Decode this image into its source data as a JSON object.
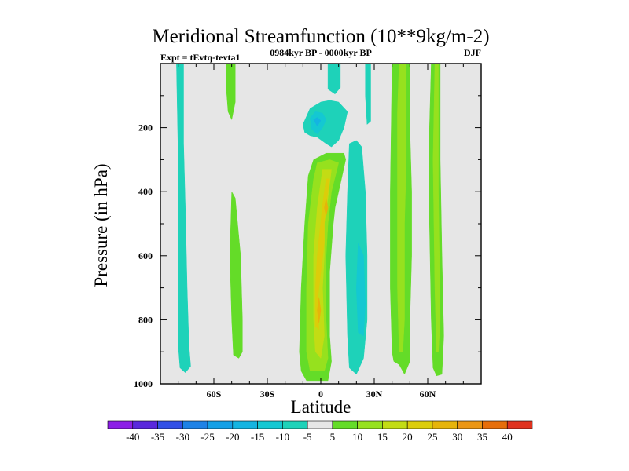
{
  "chart_data": {
    "type": "heatmap",
    "title": "Meridional Streamfunction (10**9kg/m-2)",
    "left_annotation": "Expt = tEvtq-tevta1",
    "subtitle": "0984kyr BP - 0000kyr BP",
    "season": "DJF",
    "xlabel": "Latitude",
    "ylabel": "Pressure (in hPa)",
    "xlim": [
      -90,
      90
    ],
    "ylim": [
      1000,
      0
    ],
    "x_ticks": [
      {
        "value": -60,
        "label": "60S"
      },
      {
        "value": -30,
        "label": "30S"
      },
      {
        "value": 0,
        "label": "0"
      },
      {
        "value": 30,
        "label": "30N"
      },
      {
        "value": 60,
        "label": "60N"
      }
    ],
    "y_ticks": [
      {
        "value": 200,
        "label": "200"
      },
      {
        "value": 400,
        "label": "400"
      },
      {
        "value": 600,
        "label": "600"
      },
      {
        "value": 800,
        "label": "800"
      },
      {
        "value": 1000,
        "label": "1000"
      }
    ],
    "background_color": "#e6e6e6",
    "colorbar": {
      "levels": [
        -40,
        -35,
        -30,
        -25,
        -20,
        -15,
        -10,
        -5,
        5,
        10,
        15,
        20,
        25,
        30,
        35,
        40
      ],
      "labels": [
        "-40",
        "-35",
        "-30",
        "-25",
        "-20",
        "-15",
        "-10",
        "-5",
        "5",
        "10",
        "15",
        "20",
        "25",
        "30",
        "35",
        "40"
      ],
      "colors": [
        "#8c1ee6",
        "#5a28dc",
        "#3250e6",
        "#1e82e6",
        "#14a0e6",
        "#14b4e1",
        "#14c8d2",
        "#1ed2b9",
        "#e6e6e6",
        "#64dc28",
        "#96e11e",
        "#c3dc14",
        "#dccd0a",
        "#e6b40a",
        "#eb9614",
        "#e66e0a",
        "#e0321e"
      ]
    },
    "contour_regions": [
      {
        "name": "sh-high-lat-cell",
        "level": -5,
        "points": [
          [
            -81,
            0
          ],
          [
            -77,
            0
          ],
          [
            -77,
            250
          ],
          [
            -76,
            450
          ],
          [
            -75,
            700
          ],
          [
            -74,
            880
          ],
          [
            -73,
            945
          ],
          [
            -76,
            965
          ],
          [
            -79,
            950
          ],
          [
            -80,
            880
          ],
          [
            -80,
            600
          ],
          [
            -80,
            300
          ]
        ]
      },
      {
        "name": "sh-upper-cell",
        "level": 5,
        "points": [
          [
            -53,
            0
          ],
          [
            -48,
            0
          ],
          [
            -48,
            120
          ],
          [
            -50,
            175
          ],
          [
            -52,
            150
          ],
          [
            -53,
            80
          ]
        ]
      },
      {
        "name": "sh-mid-lat-cell",
        "level": 5,
        "points": [
          [
            -50,
            400
          ],
          [
            -48,
            420
          ],
          [
            -45,
            600
          ],
          [
            -44,
            800
          ],
          [
            -44,
            900
          ],
          [
            -46,
            920
          ],
          [
            -49,
            910
          ],
          [
            -50,
            800
          ],
          [
            -51,
            600
          ]
        ]
      },
      {
        "name": "tropical-upper-cell-outer",
        "level": -5,
        "points": [
          [
            -10,
            190
          ],
          [
            -6,
            140
          ],
          [
            0,
            120
          ],
          [
            5,
            115
          ],
          [
            10,
            120
          ],
          [
            15,
            150
          ],
          [
            13,
            200
          ],
          [
            10,
            240
          ],
          [
            6,
            260
          ],
          [
            3,
            250
          ],
          [
            -2,
            230
          ],
          [
            -6,
            225
          ],
          [
            -9,
            215
          ]
        ]
      },
      {
        "name": "tropical-upper-cell-inner",
        "level": -10,
        "points": [
          [
            -6,
            170
          ],
          [
            -3,
            150
          ],
          [
            1,
            155
          ],
          [
            3,
            175
          ],
          [
            1,
            200
          ],
          [
            -2,
            220
          ],
          [
            -5,
            205
          ]
        ]
      },
      {
        "name": "tropical-upper-cell-core",
        "level": -15,
        "points": [
          [
            -4,
            175
          ],
          [
            -2,
            168
          ],
          [
            0,
            178
          ],
          [
            -2,
            195
          ]
        ]
      },
      {
        "name": "equatorial-top-cell",
        "level": 5,
        "points": [
          [
            6,
            0
          ],
          [
            9,
            0
          ],
          [
            9,
            40
          ],
          [
            7,
            60
          ],
          [
            6,
            40
          ]
        ]
      },
      {
        "name": "equatorial-top-outline",
        "level": -5,
        "points": [
          [
            4,
            0
          ],
          [
            11,
            0
          ],
          [
            11,
            75
          ],
          [
            8,
            95
          ],
          [
            4,
            80
          ]
        ]
      },
      {
        "name": "hadley-cell-outer",
        "level": 5,
        "points": [
          [
            -4,
            300
          ],
          [
            3,
            280
          ],
          [
            13,
            280
          ],
          [
            14,
            300
          ],
          [
            10,
            400
          ],
          [
            8,
            450
          ],
          [
            7,
            500
          ],
          [
            5,
            650
          ],
          [
            5,
            850
          ],
          [
            6,
            930
          ],
          [
            4,
            990
          ],
          [
            -8,
            990
          ],
          [
            -11,
            960
          ],
          [
            -12,
            900
          ],
          [
            -11,
            700
          ],
          [
            -9,
            500
          ],
          [
            -7,
            350
          ]
        ]
      },
      {
        "name": "hadley-cell-level10",
        "level": 10,
        "points": [
          [
            -2,
            310
          ],
          [
            5,
            300
          ],
          [
            10,
            310
          ],
          [
            6,
            400
          ],
          [
            4,
            500
          ],
          [
            3,
            600
          ],
          [
            3,
            800
          ],
          [
            4,
            920
          ],
          [
            2,
            960
          ],
          [
            -6,
            960
          ],
          [
            -8,
            900
          ],
          [
            -8,
            700
          ],
          [
            -7,
            500
          ],
          [
            -4,
            360
          ]
        ]
      },
      {
        "name": "hadley-cell-level15",
        "level": 15,
        "points": [
          [
            1,
            330
          ],
          [
            6,
            330
          ],
          [
            4,
            420
          ],
          [
            2,
            500
          ],
          [
            2,
            600
          ],
          [
            1,
            700
          ],
          [
            2,
            850
          ],
          [
            0,
            920
          ],
          [
            -3,
            900
          ],
          [
            -4,
            800
          ],
          [
            -4,
            600
          ],
          [
            -2,
            450
          ]
        ]
      },
      {
        "name": "hadley-cell-level20",
        "level": 20,
        "points": [
          [
            3,
            360
          ],
          [
            5,
            360
          ],
          [
            3,
            440
          ],
          [
            2,
            500
          ],
          [
            2,
            560
          ],
          [
            -1,
            700
          ],
          [
            -2,
            750
          ],
          [
            -1,
            830
          ],
          [
            -3,
            820
          ],
          [
            -3,
            700
          ],
          [
            -2,
            600
          ],
          [
            1,
            440
          ]
        ]
      },
      {
        "name": "hadley-core-upper",
        "level": 25,
        "points": [
          [
            3,
            420
          ],
          [
            4,
            450
          ],
          [
            3,
            475
          ],
          [
            2,
            450
          ]
        ]
      },
      {
        "name": "hadley-core-lower",
        "level": 25,
        "points": [
          [
            -1,
            730
          ],
          [
            0,
            770
          ],
          [
            -1,
            810
          ],
          [
            -2,
            770
          ]
        ]
      },
      {
        "name": "nh-mid-lat-cell",
        "level": -5,
        "points": [
          [
            16,
            250
          ],
          [
            20,
            240
          ],
          [
            23,
            260
          ],
          [
            25,
            400
          ],
          [
            26,
            600
          ],
          [
            26,
            800
          ],
          [
            24,
            920
          ],
          [
            20,
            970
          ],
          [
            16,
            950
          ],
          [
            15,
            850
          ],
          [
            14,
            600
          ],
          [
            15,
            400
          ]
        ]
      },
      {
        "name": "nh-mid-lat-cell-inner",
        "level": -10,
        "points": [
          [
            21,
            560
          ],
          [
            24,
            600
          ],
          [
            25,
            750
          ],
          [
            24,
            850
          ],
          [
            21,
            840
          ],
          [
            20,
            700
          ]
        ]
      },
      {
        "name": "nh-top-narrow-cell",
        "level": -5,
        "points": [
          [
            25,
            0
          ],
          [
            28,
            0
          ],
          [
            28,
            180
          ],
          [
            26,
            190
          ],
          [
            25,
            100
          ]
        ]
      },
      {
        "name": "nh-jet-cell-outer",
        "level": 5,
        "points": [
          [
            40,
            0
          ],
          [
            50,
            0
          ],
          [
            50,
            200
          ],
          [
            51,
            400
          ],
          [
            51,
            600
          ],
          [
            50,
            800
          ],
          [
            50,
            930
          ],
          [
            47,
            970
          ],
          [
            44,
            940
          ],
          [
            41,
            930
          ],
          [
            40,
            900
          ],
          [
            39,
            700
          ],
          [
            39,
            400
          ]
        ]
      },
      {
        "name": "nh-jet-cell-inner",
        "level": 10,
        "points": [
          [
            44,
            0
          ],
          [
            48,
            0
          ],
          [
            48,
            300
          ],
          [
            47,
            500
          ],
          [
            47,
            800
          ],
          [
            46,
            900
          ],
          [
            44,
            900
          ],
          [
            43,
            700
          ],
          [
            43,
            400
          ],
          [
            43,
            150
          ]
        ]
      },
      {
        "name": "nh-high-lat-cell-outer",
        "level": 5,
        "points": [
          [
            62,
            0
          ],
          [
            67,
            0
          ],
          [
            67,
            300
          ],
          [
            68,
            600
          ],
          [
            69,
            850
          ],
          [
            68,
            970
          ],
          [
            65,
            975
          ],
          [
            63,
            950
          ],
          [
            62,
            800
          ],
          [
            61,
            500
          ],
          [
            61,
            200
          ]
        ]
      },
      {
        "name": "nh-high-lat-cell-inner",
        "level": 10,
        "points": [
          [
            64,
            0
          ],
          [
            66,
            0
          ],
          [
            66,
            400
          ],
          [
            67,
            800
          ],
          [
            66,
            900
          ],
          [
            65,
            900
          ],
          [
            64,
            700
          ],
          [
            63,
            300
          ]
        ]
      }
    ]
  }
}
